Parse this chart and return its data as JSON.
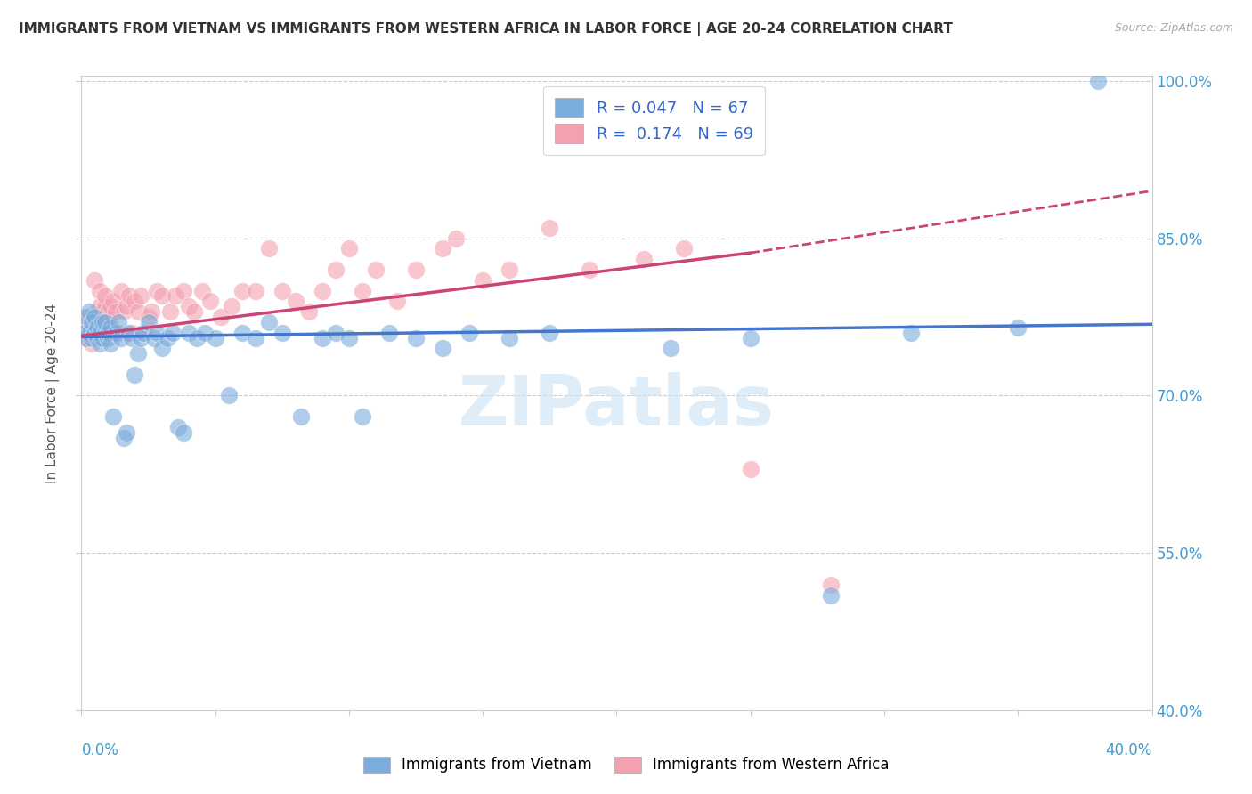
{
  "title": "IMMIGRANTS FROM VIETNAM VS IMMIGRANTS FROM WESTERN AFRICA IN LABOR FORCE | AGE 20-24 CORRELATION CHART",
  "source": "Source: ZipAtlas.com",
  "ylabel": "In Labor Force | Age 20-24",
  "xlim": [
    0.0,
    0.4
  ],
  "ylim": [
    0.4,
    1.005
  ],
  "blue_color": "#7aacdc",
  "pink_color": "#f4a0b0",
  "blue_line_color": "#4477cc",
  "pink_line_color": "#cc4477",
  "R_blue": 0.047,
  "N_blue": 67,
  "R_pink": 0.174,
  "N_pink": 69,
  "legend_label_blue": "Immigrants from Vietnam",
  "legend_label_pink": "Immigrants from Western Africa",
  "watermark": "ZIPatlas",
  "blue_x": [
    0.001,
    0.002,
    0.002,
    0.003,
    0.003,
    0.004,
    0.004,
    0.005,
    0.005,
    0.006,
    0.006,
    0.007,
    0.007,
    0.008,
    0.008,
    0.009,
    0.009,
    0.01,
    0.01,
    0.011,
    0.011,
    0.012,
    0.013,
    0.014,
    0.015,
    0.016,
    0.017,
    0.018,
    0.019,
    0.02,
    0.021,
    0.022,
    0.023,
    0.025,
    0.027,
    0.028,
    0.03,
    0.032,
    0.034,
    0.036,
    0.038,
    0.04,
    0.043,
    0.046,
    0.05,
    0.055,
    0.06,
    0.065,
    0.07,
    0.075,
    0.082,
    0.09,
    0.095,
    0.1,
    0.105,
    0.115,
    0.125,
    0.135,
    0.145,
    0.16,
    0.175,
    0.22,
    0.25,
    0.28,
    0.31,
    0.35,
    0.38
  ],
  "blue_y": [
    0.76,
    0.755,
    0.775,
    0.76,
    0.78,
    0.755,
    0.77,
    0.76,
    0.775,
    0.755,
    0.765,
    0.75,
    0.76,
    0.77,
    0.755,
    0.76,
    0.77,
    0.755,
    0.76,
    0.765,
    0.75,
    0.68,
    0.76,
    0.77,
    0.755,
    0.66,
    0.665,
    0.76,
    0.755,
    0.72,
    0.74,
    0.755,
    0.76,
    0.77,
    0.755,
    0.76,
    0.745,
    0.755,
    0.76,
    0.67,
    0.665,
    0.76,
    0.755,
    0.76,
    0.755,
    0.7,
    0.76,
    0.755,
    0.77,
    0.76,
    0.68,
    0.755,
    0.76,
    0.755,
    0.68,
    0.76,
    0.755,
    0.745,
    0.76,
    0.755,
    0.76,
    0.745,
    0.755,
    0.51,
    0.76,
    0.765,
    1.0
  ],
  "pink_x": [
    0.001,
    0.002,
    0.002,
    0.003,
    0.003,
    0.004,
    0.004,
    0.005,
    0.005,
    0.006,
    0.006,
    0.007,
    0.007,
    0.008,
    0.008,
    0.009,
    0.009,
    0.01,
    0.01,
    0.011,
    0.011,
    0.012,
    0.013,
    0.014,
    0.015,
    0.016,
    0.017,
    0.018,
    0.019,
    0.02,
    0.021,
    0.022,
    0.023,
    0.025,
    0.026,
    0.028,
    0.03,
    0.033,
    0.035,
    0.038,
    0.04,
    0.042,
    0.045,
    0.048,
    0.052,
    0.056,
    0.06,
    0.065,
    0.07,
    0.075,
    0.08,
    0.085,
    0.09,
    0.095,
    0.1,
    0.105,
    0.11,
    0.118,
    0.125,
    0.135,
    0.14,
    0.15,
    0.16,
    0.175,
    0.19,
    0.21,
    0.225,
    0.25,
    0.28
  ],
  "pink_y": [
    0.76,
    0.755,
    0.77,
    0.775,
    0.76,
    0.75,
    0.76,
    0.81,
    0.76,
    0.77,
    0.78,
    0.8,
    0.785,
    0.775,
    0.78,
    0.785,
    0.795,
    0.78,
    0.76,
    0.775,
    0.785,
    0.79,
    0.78,
    0.76,
    0.8,
    0.78,
    0.785,
    0.795,
    0.76,
    0.79,
    0.78,
    0.795,
    0.76,
    0.775,
    0.78,
    0.8,
    0.795,
    0.78,
    0.795,
    0.8,
    0.785,
    0.78,
    0.8,
    0.79,
    0.775,
    0.785,
    0.8,
    0.8,
    0.84,
    0.8,
    0.79,
    0.78,
    0.8,
    0.82,
    0.84,
    0.8,
    0.82,
    0.79,
    0.82,
    0.84,
    0.85,
    0.81,
    0.82,
    0.86,
    0.82,
    0.83,
    0.84,
    0.63,
    0.52
  ],
  "pink_dashed_from": 0.25,
  "blue_trend": [
    0.0,
    0.4,
    0.756,
    0.768
  ],
  "pink_trend_solid": [
    0.0,
    0.25,
    0.757,
    0.836
  ],
  "pink_trend_dashed": [
    0.25,
    0.4,
    0.836,
    0.895
  ]
}
